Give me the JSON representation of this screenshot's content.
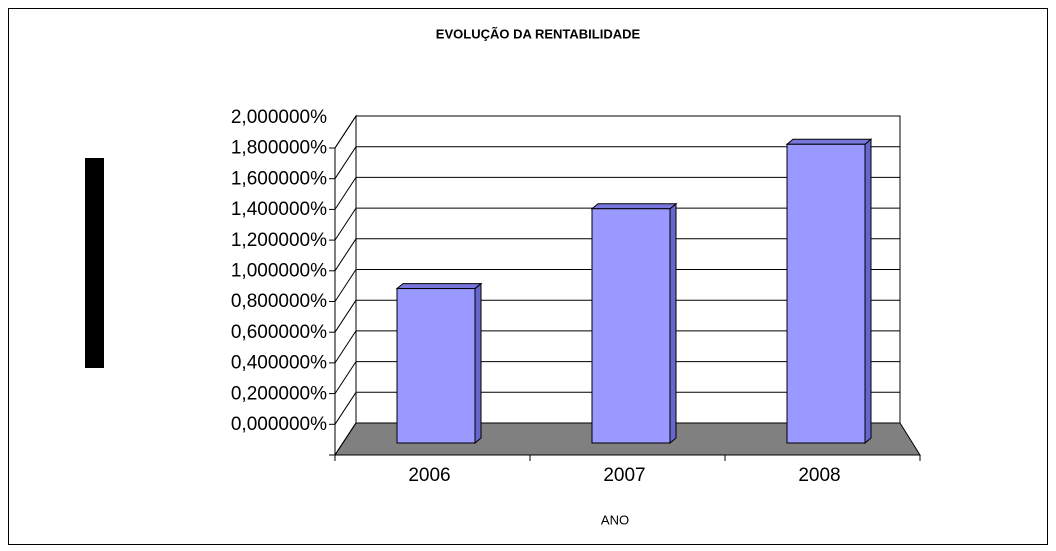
{
  "chart_data": {
    "type": "bar",
    "title": "EVOLUÇÃO DA RENTABILIDADE",
    "x_label": "ANO",
    "categories": [
      "2006",
      "2007",
      "2008"
    ],
    "values": [
      0.98,
      1.5,
      1.92
    ],
    "color": "#9999ff",
    "ylim": [
      0,
      2
    ],
    "yticks": [
      {
        "value": 0,
        "label": "0,000000%"
      },
      {
        "value": 0.2,
        "label": "0,200000%"
      },
      {
        "value": 0.4,
        "label": "0,400000%"
      },
      {
        "value": 0.6,
        "label": "0,600000%"
      },
      {
        "value": 0.8,
        "label": "0,800000%"
      },
      {
        "value": 1,
        "label": "1,000000%"
      },
      {
        "value": 1.2,
        "label": "1,200000%"
      },
      {
        "value": 1.4,
        "label": "1,400000%"
      },
      {
        "value": 1.6,
        "label": "1,600000%"
      },
      {
        "value": 1.8,
        "label": "1,800000%"
      },
      {
        "value": 2,
        "label": "2,000000%"
      }
    ],
    "grid": true
  }
}
